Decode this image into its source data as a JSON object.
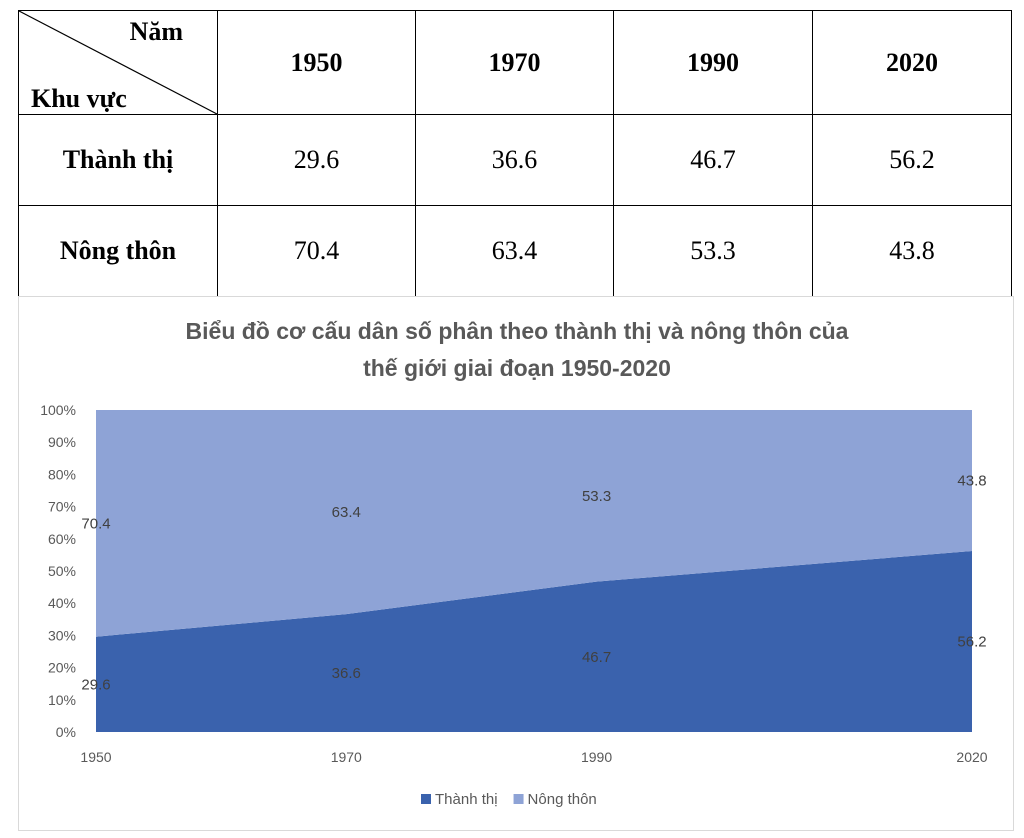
{
  "table": {
    "corner_top": "Năm",
    "corner_bottom": "Khu vực",
    "years": [
      "1950",
      "1970",
      "1990",
      "2020"
    ],
    "rows": [
      {
        "label": "Thành thị",
        "values": [
          "29.6",
          "36.6",
          "46.7",
          "56.2"
        ]
      },
      {
        "label": "Nông thôn",
        "values": [
          "70.4",
          "63.4",
          "53.3",
          "43.8"
        ]
      }
    ]
  },
  "chart_data": {
    "type": "area",
    "stacked": "percent",
    "title": [
      "Biểu đồ cơ cấu dân số phân theo thành thị và nông thôn của",
      "thế giới giai đoạn 1950-2020"
    ],
    "categories": [
      "1950",
      "1970",
      "1990",
      "2020"
    ],
    "x": [
      1950,
      1970,
      1990,
      2020
    ],
    "series": [
      {
        "name": "Thành thị",
        "values": [
          29.6,
          36.6,
          46.7,
          56.2
        ],
        "color": "#3a62ad"
      },
      {
        "name": "Nông thôn",
        "values": [
          70.4,
          63.4,
          53.3,
          43.8
        ],
        "color": "#8ea3d6"
      }
    ],
    "yticks": [
      "0%",
      "10%",
      "20%",
      "30%",
      "40%",
      "50%",
      "60%",
      "70%",
      "80%",
      "90%",
      "100%"
    ],
    "ylim": [
      0,
      100
    ],
    "xlabel": "",
    "ylabel": "",
    "grid": false,
    "legend": "bottom"
  }
}
